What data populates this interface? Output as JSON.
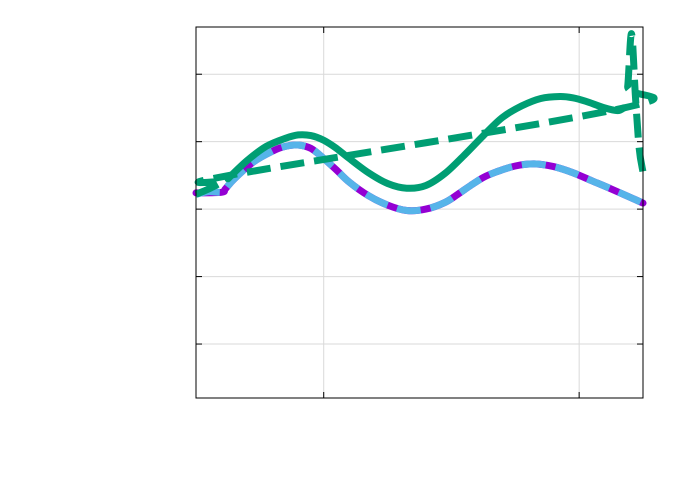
{
  "chart_data": {
    "type": "line",
    "title": "",
    "xlabel": "",
    "ylabel": "",
    "xlim": [
      0,
      3.5
    ],
    "ylim": [
      -3,
      2.5
    ],
    "x_gridlines": [
      1,
      3
    ],
    "y_gridlines": [
      -2.2,
      -1.2,
      -0.2,
      0.8,
      1.8
    ],
    "grid": true,
    "legend": "none",
    "series": [
      {
        "style": "solid",
        "color": "#9400d3",
        "x": [
          0,
          0.2,
          0.23,
          0.3,
          0.45,
          0.6,
          0.7,
          0.8,
          0.9,
          1.0,
          1.1,
          1.2,
          1.35,
          1.5,
          1.65,
          1.8,
          1.95,
          2.05,
          2.15,
          2.25,
          2.35,
          2.5,
          2.65,
          2.8,
          2.95,
          3.1,
          3.25,
          3.5
        ],
        "y": [
          0.04,
          0.05,
          0.1,
          0.25,
          0.5,
          0.66,
          0.73,
          0.75,
          0.7,
          0.55,
          0.38,
          0.2,
          0,
          -0.14,
          -0.22,
          -0.2,
          -0.1,
          0.02,
          0.15,
          0.27,
          0.35,
          0.44,
          0.47,
          0.43,
          0.34,
          0.22,
          0.1,
          -0.11
        ]
      },
      {
        "style": "dashed",
        "color": "#56b4e9",
        "x": [
          0,
          0.1,
          0.2,
          0.23,
          0.3,
          0.45,
          0.6,
          0.7,
          0.8,
          0.9,
          1.0,
          1.1,
          1.2,
          1.35,
          1.5,
          1.65,
          1.8,
          1.95,
          2.05,
          2.15,
          2.25,
          2.35,
          2.5,
          2.65,
          2.8,
          2.95,
          3.1,
          3.25,
          3.5
        ],
        "y": [
          0.02,
          0.06,
          0.05,
          0.1,
          0.25,
          0.5,
          0.66,
          0.73,
          0.75,
          0.7,
          0.55,
          0.38,
          0.2,
          0,
          -0.14,
          -0.22,
          -0.2,
          -0.1,
          0.02,
          0.15,
          0.27,
          0.35,
          0.44,
          0.47,
          0.43,
          0.34,
          0.22,
          0.1,
          -0.11
        ]
      },
      {
        "style": "solid",
        "color": "#009e73",
        "x": [
          0.25,
          0.4,
          0.55,
          0.7,
          0.8,
          0.9,
          1.0,
          1.1,
          1.2,
          1.35,
          1.5,
          1.65,
          1.8,
          1.95,
          2.1,
          2.25,
          2.4,
          2.55,
          2.7,
          2.85,
          2.95,
          3.05,
          3.2,
          3.3,
          3.35
        ],
        "y": [
          0.25,
          0.52,
          0.73,
          0.85,
          0.9,
          0.89,
          0.82,
          0.7,
          0.55,
          0.34,
          0.18,
          0.11,
          0.15,
          0.33,
          0.6,
          0.89,
          1.16,
          1.33,
          1.44,
          1.47,
          1.45,
          1.4,
          1.3,
          1.26,
          1.3
        ]
      },
      {
        "style": "dashed",
        "color": "#009e73",
        "x": [
          0,
          0.1,
          0.2,
          0.26,
          3.35,
          3.38,
          3.41,
          3.44,
          3.47,
          3.5
        ],
        "y": [
          0.02,
          0.1,
          0.2,
          0.3,
          1.3,
          1.62,
          2.4,
          1.5,
          0.7,
          0.35
        ]
      }
    ]
  }
}
